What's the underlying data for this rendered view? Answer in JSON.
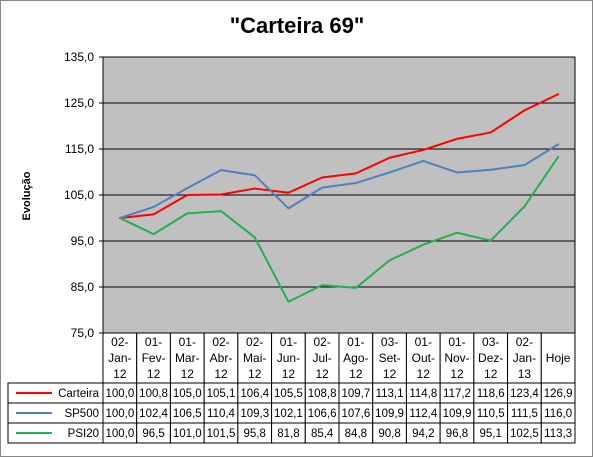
{
  "chart_data": {
    "type": "line",
    "title": "\"Carteira 69\"",
    "ylabel": "Evolução",
    "xlabel": "",
    "ylim": [
      75,
      135
    ],
    "yticks": [
      "135,0",
      "125,0",
      "115,0",
      "105,0",
      "95,0",
      "85,0",
      "75,0"
    ],
    "ytick_values": [
      135,
      125,
      115,
      105,
      95,
      85,
      75
    ],
    "grid": true,
    "legend": "data-table",
    "categories": [
      [
        "02-",
        "Jan-",
        "12"
      ],
      [
        "01-",
        "Fev-",
        "12"
      ],
      [
        "01-",
        "Mar-",
        "12"
      ],
      [
        "02-",
        "Abr-",
        "12"
      ],
      [
        "02-",
        "Mai-",
        "12"
      ],
      [
        "01-",
        "Jun-",
        "12"
      ],
      [
        "02-",
        "Jul-",
        "12"
      ],
      [
        "01-",
        "Ago-",
        "12"
      ],
      [
        "03-",
        "Set-",
        "12"
      ],
      [
        "01-",
        "Out-",
        "12"
      ],
      [
        "01-",
        "Nov-",
        "12"
      ],
      [
        "03-",
        "Dez-",
        "12"
      ],
      [
        "02-",
        "Jan-",
        "13"
      ],
      [
        "Hoje"
      ]
    ],
    "series": [
      {
        "name": "Carteira",
        "color": "#ff0000",
        "values": [
          100.0,
          100.8,
          105.0,
          105.1,
          106.4,
          105.5,
          108.8,
          109.7,
          113.1,
          114.8,
          117.2,
          118.6,
          123.4,
          126.9
        ],
        "labels": [
          "100,0",
          "100,8",
          "105,0",
          "105,1",
          "106,4",
          "105,5",
          "108,8",
          "109,7",
          "113,1",
          "114,8",
          "117,2",
          "118,6",
          "123,4",
          "126,9"
        ]
      },
      {
        "name": "SP500",
        "color": "#4f81bd",
        "values": [
          100.0,
          102.4,
          106.5,
          110.4,
          109.3,
          102.1,
          106.6,
          107.6,
          109.9,
          112.4,
          109.9,
          110.5,
          111.5,
          116.0
        ],
        "labels": [
          "100,0",
          "102,4",
          "106,5",
          "110,4",
          "109,3",
          "102,1",
          "106,6",
          "107,6",
          "109,9",
          "112,4",
          "109,9",
          "110,5",
          "111,5",
          "116,0"
        ]
      },
      {
        "name": "PSI20",
        "color": "#22b14c",
        "values": [
          100.0,
          96.5,
          101.0,
          101.5,
          95.8,
          81.8,
          85.4,
          84.8,
          90.8,
          94.2,
          96.8,
          95.1,
          102.5,
          113.3
        ],
        "labels": [
          "100,0",
          "96,5",
          "101,0",
          "101,5",
          "95,8",
          "81,8",
          "85,4",
          "84,8",
          "90,8",
          "94,2",
          "96,8",
          "95,1",
          "102,5",
          "113,3"
        ]
      }
    ]
  },
  "colors": {
    "plot_background": "#c0c0c0",
    "gridline": "#000000",
    "border": "#000000"
  }
}
